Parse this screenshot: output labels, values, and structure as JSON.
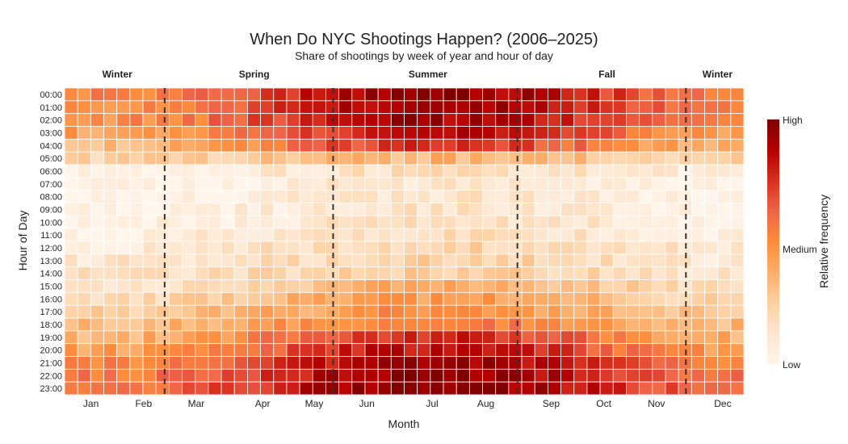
{
  "chart_data": {
    "type": "heatmap",
    "title": "When Do NYC Shootings Happen? (2006–2025)",
    "subtitle": "Share of shootings by week of year and hour of day",
    "xlabel": "Month",
    "ylabel": "Hour of Day",
    "hours": [
      "00:00",
      "01:00",
      "02:00",
      "03:00",
      "04:00",
      "05:00",
      "06:00",
      "07:00",
      "08:00",
      "09:00",
      "10:00",
      "11:00",
      "12:00",
      "13:00",
      "14:00",
      "15:00",
      "16:00",
      "17:00",
      "18:00",
      "19:00",
      "20:00",
      "21:00",
      "22:00",
      "23:00"
    ],
    "weeks": 52,
    "month_ticks": [
      {
        "label": "Jan",
        "week": 2.5
      },
      {
        "label": "Feb",
        "week": 7.5
      },
      {
        "label": "Mar",
        "week": 12.5
      },
      {
        "label": "Apr",
        "week": 18.8
      },
      {
        "label": "May",
        "week": 23.7
      },
      {
        "label": "Jun",
        "week": 28.7
      },
      {
        "label": "Jul",
        "week": 34.9
      },
      {
        "label": "Aug",
        "week": 40
      },
      {
        "label": "Sep",
        "week": 46.2
      },
      {
        "label": "Oct",
        "week": 51.2
      },
      {
        "label": "Nov",
        "week": 56.2
      },
      {
        "label": "Dec",
        "week": 62.5
      }
    ],
    "seasons": [
      {
        "label": "Winter",
        "week": 5
      },
      {
        "label": "Spring",
        "week": 18
      },
      {
        "label": "Summer",
        "week": 34.5
      },
      {
        "label": "Fall",
        "week": 51.5
      },
      {
        "label": "Winter",
        "week": 62
      }
    ],
    "season_boundaries": [
      9.5,
      25.5,
      43,
      59
    ],
    "hour_profile": [
      0.72,
      0.7,
      0.68,
      0.62,
      0.52,
      0.28,
      0.1,
      0.06,
      0.06,
      0.07,
      0.09,
      0.11,
      0.15,
      0.17,
      0.19,
      0.25,
      0.31,
      0.36,
      0.44,
      0.54,
      0.62,
      0.7,
      0.74,
      0.76
    ],
    "colorbar": {
      "ticks": [
        "High",
        "Medium",
        "Low"
      ],
      "title": "Relative frequency"
    },
    "colorscale": [
      "#fff5eb",
      "#fee6ce",
      "#fdd0a2",
      "#fdae6b",
      "#fd8d3c",
      "#ef6548",
      "#d7301f",
      "#b30000",
      "#7f0000"
    ],
    "grid": false
  }
}
